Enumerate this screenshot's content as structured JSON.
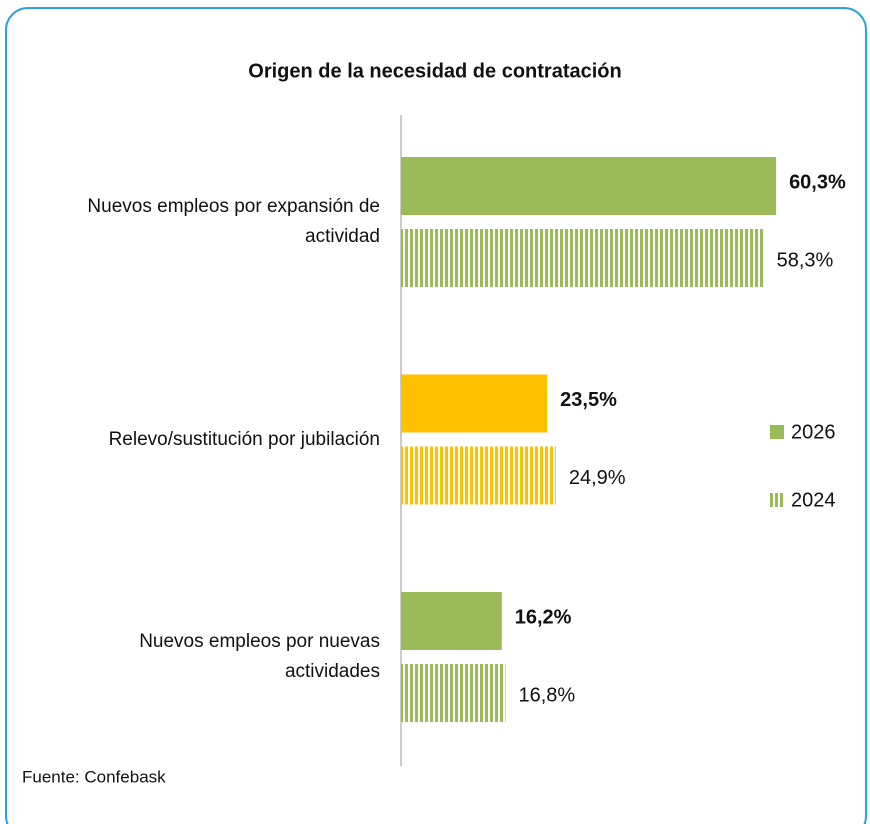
{
  "chart_data": {
    "type": "barh",
    "title": "Origen de la necesidad de contratación",
    "categories": [
      "Nuevos empleos por expansión de actividad",
      "Relevo/sustitución por jubilación",
      "Nuevos empleos por nuevas actividades"
    ],
    "series": [
      {
        "name": "2026",
        "color": "#9bbb59",
        "colors": [
          "#9bbb59",
          "#ffc000",
          "#9bbb59"
        ],
        "pattern": "solid",
        "bold_labels": true,
        "values": [
          60.3,
          23.5,
          16.2
        ],
        "value_labels": [
          "60,3%",
          "23,5%",
          "16,2%"
        ]
      },
      {
        "name": "2024",
        "color": "#9bbb59",
        "colors": [
          "#9bbb59",
          "#ffc000",
          "#9bbb59"
        ],
        "pattern": "vertical-stripes",
        "bold_labels": false,
        "values": [
          58.3,
          24.9,
          16.8
        ],
        "value_labels": [
          "58,3%",
          "24,9%",
          "16,8%"
        ]
      }
    ],
    "xlim": [
      0,
      70
    ],
    "legend": "right",
    "source": "Fuente: Confebask"
  }
}
